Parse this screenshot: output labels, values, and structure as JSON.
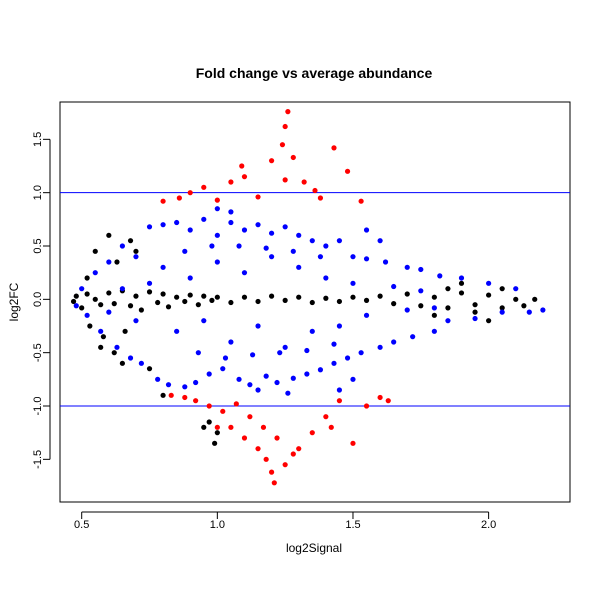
{
  "chart_data": {
    "type": "scatter",
    "title": "Fold change vs average abundance",
    "xlabel": "log2Signal",
    "ylabel": "log2FC",
    "xlim": [
      0.42,
      2.3
    ],
    "ylim": [
      -1.9,
      1.85
    ],
    "x_ticks": [
      0.5,
      1.0,
      1.5,
      2.0
    ],
    "x_tick_labels": [
      "0.5",
      "1.0",
      "1.5",
      "2.0"
    ],
    "y_ticks": [
      -1.5,
      -1.0,
      -0.5,
      0.0,
      0.5,
      1.0,
      1.5
    ],
    "y_tick_labels": [
      "-1.5",
      "-1.0",
      "-0.5",
      "0.0",
      "0.5",
      "1.0",
      "1.5"
    ],
    "reference_lines": [
      1.0,
      -1.0
    ],
    "reference_line_color": "#0000ff",
    "grid": false,
    "legend": "none",
    "series": [
      {
        "color": "#000000",
        "points": [
          [
            0.47,
            -0.02
          ],
          [
            0.48,
            0.03
          ],
          [
            0.5,
            -0.08
          ],
          [
            0.52,
            0.05
          ],
          [
            0.55,
            0.0
          ],
          [
            0.57,
            -0.05
          ],
          [
            0.6,
            0.06
          ],
          [
            0.62,
            -0.04
          ],
          [
            0.65,
            0.08
          ],
          [
            0.68,
            -0.06
          ],
          [
            0.7,
            0.03
          ],
          [
            0.72,
            -0.1
          ],
          [
            0.75,
            0.07
          ],
          [
            0.78,
            -0.03
          ],
          [
            0.8,
            0.05
          ],
          [
            0.82,
            -0.07
          ],
          [
            0.85,
            0.02
          ],
          [
            0.88,
            -0.02
          ],
          [
            0.9,
            0.04
          ],
          [
            0.93,
            -0.05
          ],
          [
            0.95,
            0.03
          ],
          [
            0.98,
            -0.01
          ],
          [
            1.0,
            0.02
          ],
          [
            1.05,
            -0.03
          ],
          [
            1.1,
            0.02
          ],
          [
            1.15,
            -0.02
          ],
          [
            1.2,
            0.03
          ],
          [
            1.25,
            -0.01
          ],
          [
            1.3,
            0.02
          ],
          [
            1.35,
            -0.03
          ],
          [
            1.4,
            0.01
          ],
          [
            1.45,
            -0.02
          ],
          [
            1.5,
            0.02
          ],
          [
            1.55,
            -0.01
          ],
          [
            1.6,
            0.03
          ],
          [
            1.65,
            -0.04
          ],
          [
            1.7,
            0.05
          ],
          [
            1.75,
            -0.06
          ],
          [
            1.8,
            0.02
          ],
          [
            1.85,
            -0.08
          ],
          [
            1.9,
            0.06
          ],
          [
            1.95,
            -0.05
          ],
          [
            2.0,
            0.04
          ],
          [
            2.05,
            -0.08
          ],
          [
            2.1,
            0.0
          ],
          [
            2.17,
            0.0
          ],
          [
            2.13,
            -0.06
          ],
          [
            0.6,
            0.6
          ],
          [
            0.55,
            0.45
          ],
          [
            0.65,
            -0.6
          ],
          [
            0.62,
            -0.5
          ],
          [
            0.58,
            -0.35
          ],
          [
            0.7,
            0.45
          ],
          [
            0.52,
            0.2
          ],
          [
            0.53,
            -0.25
          ],
          [
            0.68,
            0.55
          ],
          [
            0.75,
            -0.65
          ],
          [
            0.63,
            0.35
          ],
          [
            0.8,
            -0.9
          ],
          [
            0.95,
            -1.2
          ],
          [
            0.97,
            -1.15
          ],
          [
            1.0,
            -1.25
          ],
          [
            0.99,
            -1.35
          ],
          [
            0.57,
            -0.45
          ],
          [
            0.66,
            -0.3
          ],
          [
            1.8,
            -0.15
          ],
          [
            1.9,
            0.15
          ],
          [
            2.0,
            -0.2
          ],
          [
            1.85,
            0.1
          ],
          [
            1.95,
            -0.12
          ],
          [
            2.05,
            0.1
          ]
        ]
      },
      {
        "color": "#0000ff",
        "points": [
          [
            0.48,
            -0.06
          ],
          [
            0.5,
            0.1
          ],
          [
            0.52,
            -0.15
          ],
          [
            0.55,
            0.25
          ],
          [
            0.57,
            -0.3
          ],
          [
            0.6,
            0.35
          ],
          [
            0.63,
            -0.45
          ],
          [
            0.65,
            0.5
          ],
          [
            0.68,
            -0.55
          ],
          [
            0.7,
            0.4
          ],
          [
            0.72,
            -0.6
          ],
          [
            0.75,
            0.68
          ],
          [
            0.78,
            -0.75
          ],
          [
            0.8,
            0.7
          ],
          [
            0.82,
            -0.8
          ],
          [
            0.85,
            0.72
          ],
          [
            0.88,
            -0.82
          ],
          [
            0.9,
            0.65
          ],
          [
            0.92,
            -0.78
          ],
          [
            0.95,
            0.75
          ],
          [
            0.97,
            -0.7
          ],
          [
            1.0,
            0.6
          ],
          [
            1.02,
            -0.65
          ],
          [
            1.05,
            0.72
          ],
          [
            1.08,
            -0.75
          ],
          [
            1.1,
            0.65
          ],
          [
            1.12,
            -0.8
          ],
          [
            1.15,
            0.7
          ],
          [
            1.18,
            -0.72
          ],
          [
            1.2,
            0.62
          ],
          [
            1.22,
            -0.78
          ],
          [
            1.25,
            0.68
          ],
          [
            1.28,
            -0.74
          ],
          [
            1.3,
            0.6
          ],
          [
            1.33,
            -0.7
          ],
          [
            1.35,
            0.55
          ],
          [
            1.38,
            -0.66
          ],
          [
            1.4,
            0.5
          ],
          [
            1.43,
            -0.6
          ],
          [
            1.45,
            0.55
          ],
          [
            1.48,
            -0.55
          ],
          [
            1.5,
            0.4
          ],
          [
            1.53,
            -0.5
          ],
          [
            1.55,
            0.38
          ],
          [
            1.6,
            -0.45
          ],
          [
            1.62,
            0.35
          ],
          [
            1.65,
            -0.4
          ],
          [
            1.7,
            0.3
          ],
          [
            1.72,
            -0.35
          ],
          [
            1.75,
            0.28
          ],
          [
            1.8,
            -0.3
          ],
          [
            1.82,
            0.22
          ],
          [
            1.85,
            -0.2
          ],
          [
            1.9,
            0.2
          ],
          [
            1.95,
            -0.18
          ],
          [
            2.0,
            0.15
          ],
          [
            2.05,
            -0.12
          ],
          [
            2.1,
            0.1
          ],
          [
            2.2,
            -0.1
          ],
          [
            2.15,
            -0.12
          ],
          [
            1.55,
            0.65
          ],
          [
            1.6,
            0.55
          ],
          [
            1.45,
            -0.85
          ],
          [
            1.5,
            -0.75
          ],
          [
            0.8,
            0.3
          ],
          [
            0.85,
            -0.3
          ],
          [
            0.9,
            0.2
          ],
          [
            0.95,
            -0.2
          ],
          [
            1.0,
            0.35
          ],
          [
            1.05,
            -0.4
          ],
          [
            1.1,
            0.25
          ],
          [
            1.15,
            -0.25
          ],
          [
            1.2,
            0.4
          ],
          [
            1.25,
            -0.45
          ],
          [
            1.3,
            0.3
          ],
          [
            1.35,
            -0.3
          ],
          [
            1.4,
            0.2
          ],
          [
            1.45,
            -0.25
          ],
          [
            1.5,
            0.15
          ],
          [
            1.55,
            -0.15
          ],
          [
            0.75,
            0.15
          ],
          [
            0.7,
            -0.2
          ],
          [
            0.65,
            0.1
          ],
          [
            0.6,
            -0.12
          ],
          [
            1.65,
            0.12
          ],
          [
            1.7,
            -0.1
          ],
          [
            1.75,
            0.08
          ],
          [
            1.8,
            -0.08
          ],
          [
            0.88,
            0.45
          ],
          [
            0.93,
            -0.5
          ],
          [
            0.98,
            0.5
          ],
          [
            1.03,
            -0.55
          ],
          [
            1.08,
            0.5
          ],
          [
            1.13,
            -0.52
          ],
          [
            1.18,
            0.48
          ],
          [
            1.23,
            -0.5
          ],
          [
            1.28,
            0.45
          ],
          [
            1.33,
            -0.48
          ],
          [
            1.38,
            0.4
          ],
          [
            1.43,
            -0.42
          ],
          [
            1.26,
            -0.88
          ],
          [
            1.15,
            -0.85
          ],
          [
            1.0,
            0.85
          ],
          [
            1.05,
            0.82
          ]
        ]
      },
      {
        "color": "#ff0000",
        "points": [
          [
            0.8,
            0.92
          ],
          [
            0.83,
            -0.9
          ],
          [
            0.86,
            0.95
          ],
          [
            0.88,
            -0.92
          ],
          [
            0.9,
            1.0
          ],
          [
            0.92,
            -0.95
          ],
          [
            0.95,
            1.05
          ],
          [
            0.97,
            -1.0
          ],
          [
            1.0,
            0.93
          ],
          [
            1.02,
            -1.05
          ],
          [
            1.05,
            1.1
          ],
          [
            1.07,
            -0.98
          ],
          [
            1.1,
            1.15
          ],
          [
            1.12,
            -1.1
          ],
          [
            1.15,
            0.96
          ],
          [
            1.17,
            -1.2
          ],
          [
            1.2,
            1.3
          ],
          [
            1.22,
            -1.3
          ],
          [
            1.25,
            1.62
          ],
          [
            1.24,
            1.45
          ],
          [
            1.26,
            1.76
          ],
          [
            1.28,
            1.33
          ],
          [
            1.3,
            -1.4
          ],
          [
            1.32,
            1.1
          ],
          [
            1.35,
            -1.25
          ],
          [
            1.38,
            0.95
          ],
          [
            1.4,
            -1.1
          ],
          [
            1.43,
            1.42
          ],
          [
            1.45,
            -0.95
          ],
          [
            1.48,
            1.2
          ],
          [
            1.5,
            -1.35
          ],
          [
            1.53,
            0.92
          ],
          [
            1.55,
            -1.0
          ],
          [
            1.6,
            -0.92
          ],
          [
            1.63,
            -0.95
          ],
          [
            1.18,
            -1.5
          ],
          [
            1.2,
            -1.62
          ],
          [
            1.21,
            -1.72
          ],
          [
            1.25,
            -1.55
          ],
          [
            1.28,
            -1.45
          ],
          [
            1.05,
            -1.2
          ],
          [
            1.1,
            -1.3
          ],
          [
            1.15,
            -1.4
          ],
          [
            1.0,
            -1.2
          ],
          [
            1.09,
            1.25
          ],
          [
            1.25,
            1.12
          ],
          [
            1.36,
            1.02
          ],
          [
            1.42,
            -1.2
          ]
        ]
      }
    ]
  }
}
